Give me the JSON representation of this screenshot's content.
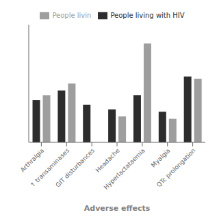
{
  "chart_data": {
    "type": "bar",
    "xlabel": "Adverse effects",
    "categories": [
      "Arthralgia",
      "↑ transaminases",
      "GIT disturbances",
      "Headache",
      "Hyperlactataemia",
      "Myalgia",
      "QTc prolongation"
    ],
    "series": [
      {
        "name": "People living with HIV",
        "color": "#2d2d2d",
        "values": [
          18,
          22,
          16,
          14,
          20,
          13,
          28
        ]
      },
      {
        "name": "People livin",
        "color": "#9e9e9e",
        "values": [
          20,
          25,
          0,
          11,
          42,
          10,
          27
        ]
      }
    ],
    "ylim": [
      0,
      50
    ],
    "grid": false,
    "legend": "top",
    "tick_labels": "x"
  }
}
